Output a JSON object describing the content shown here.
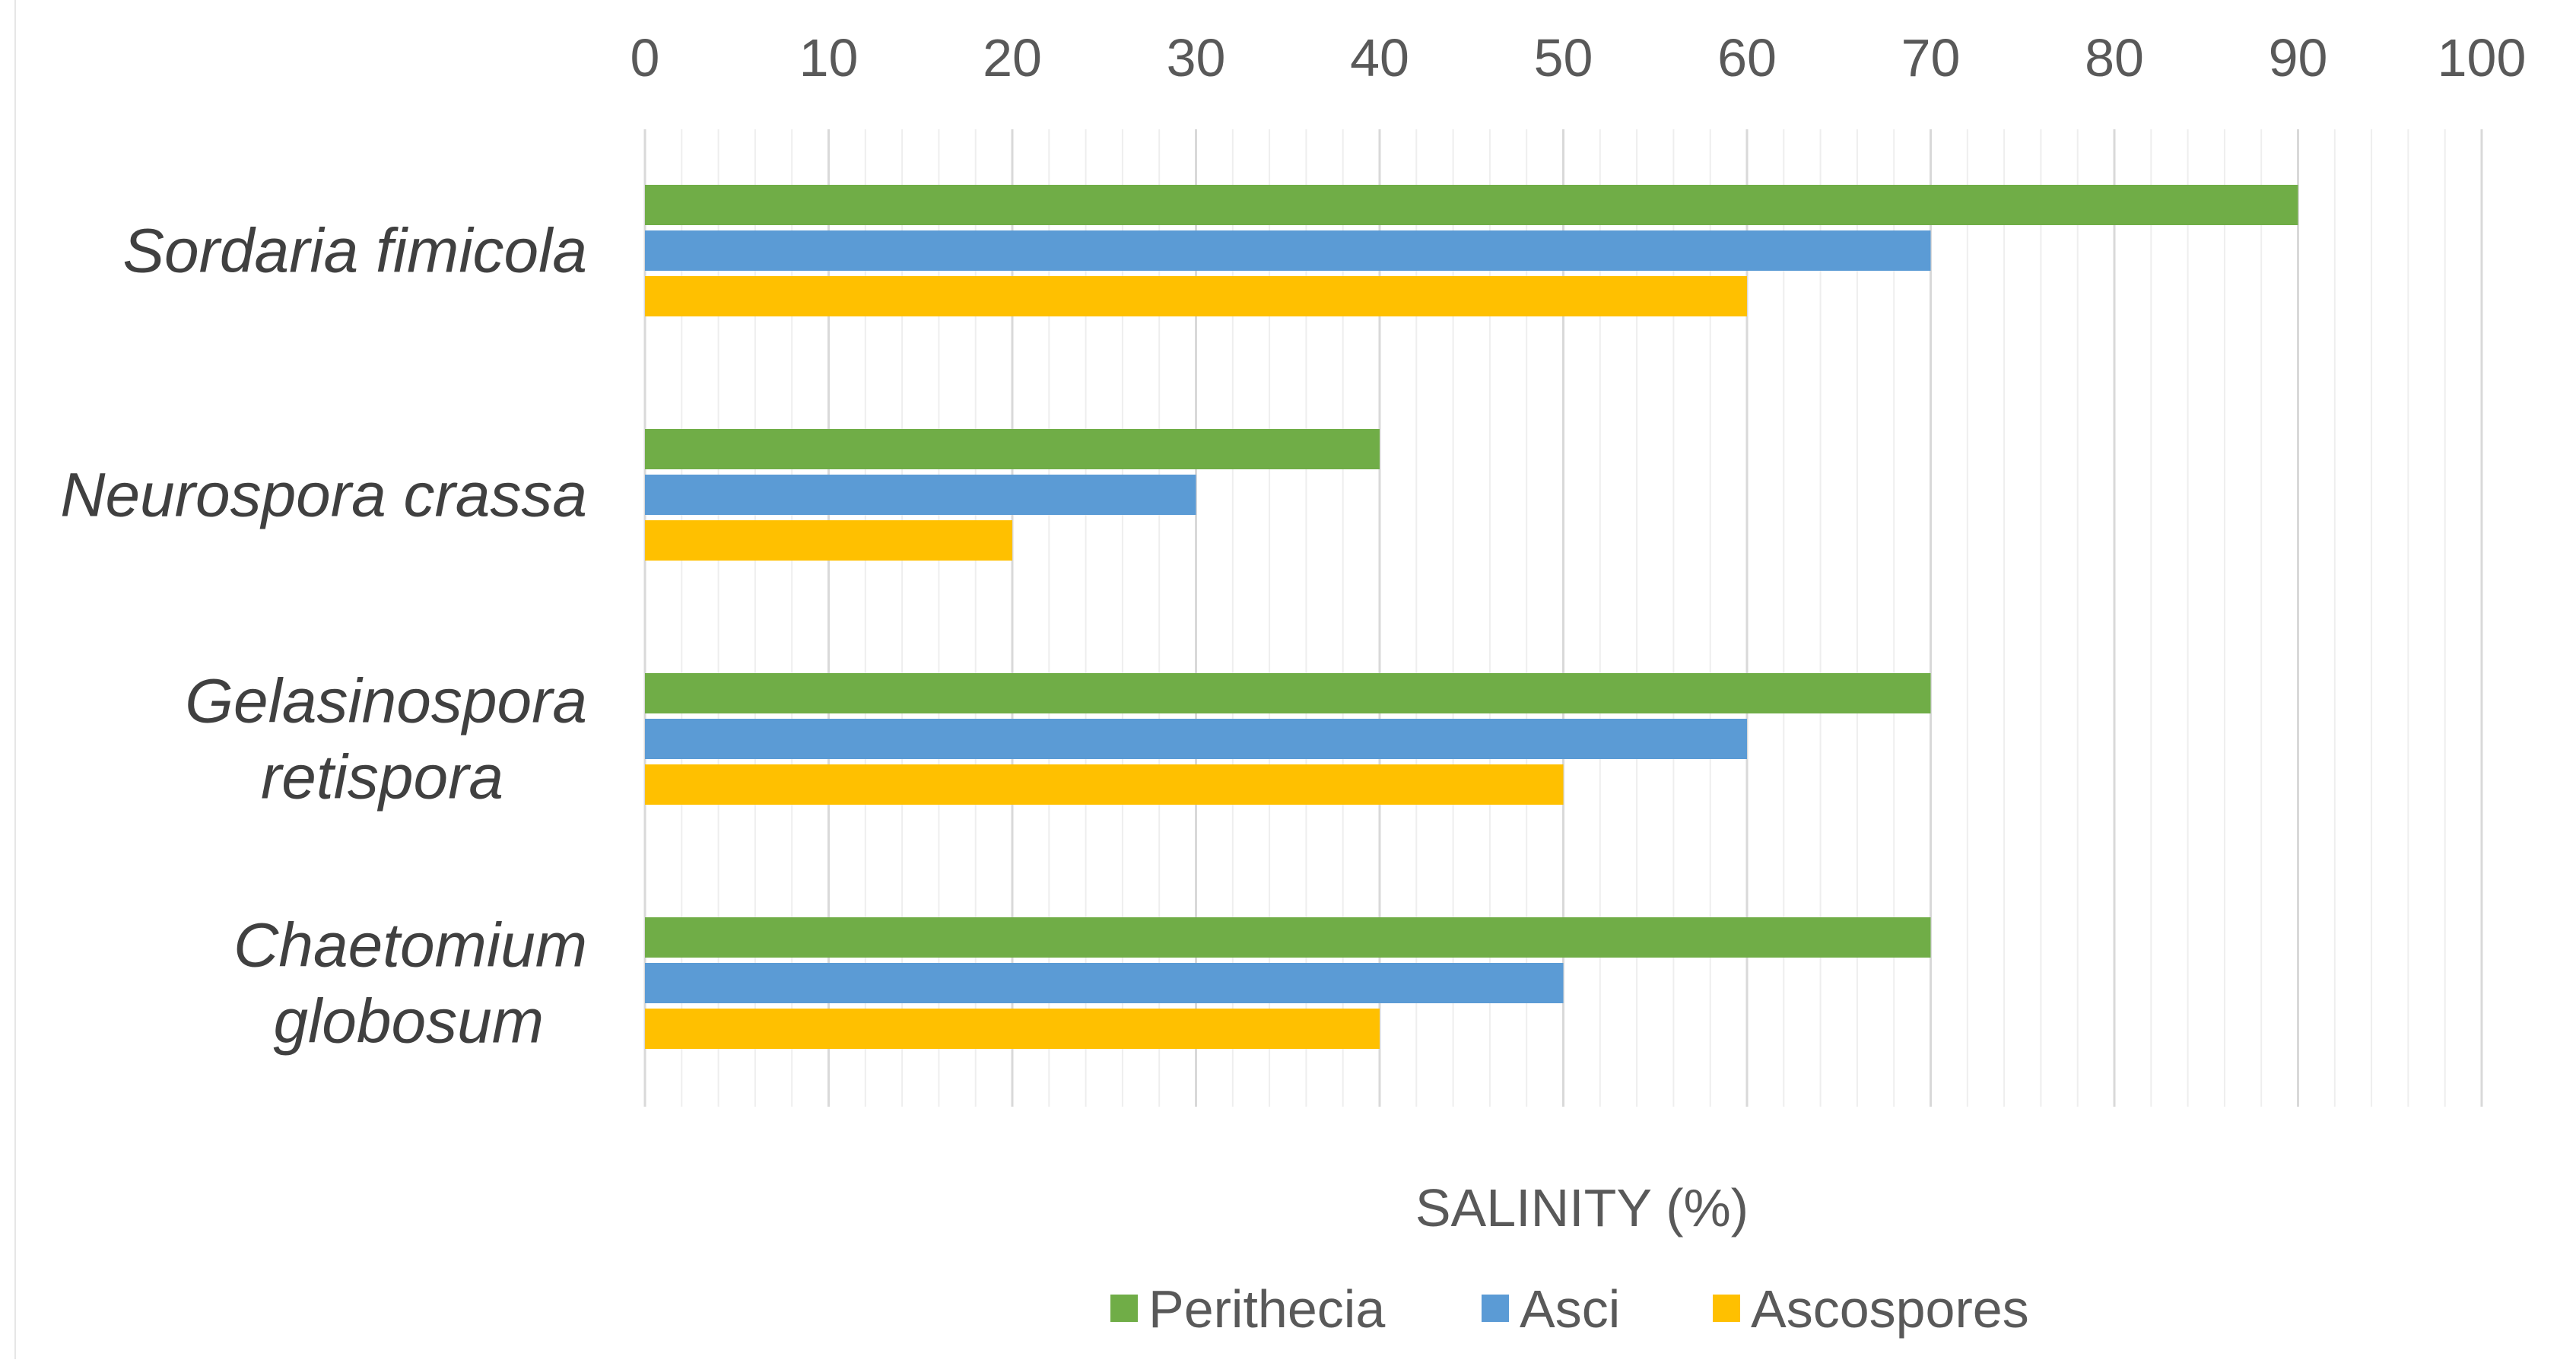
{
  "chart_data": {
    "type": "bar",
    "orientation": "horizontal",
    "title": "",
    "xlabel": "SALINITY (%)",
    "ylabel": "",
    "xlim": [
      0,
      100
    ],
    "x_ticks": [
      "0",
      "10",
      "20",
      "30",
      "40",
      "50",
      "60",
      "70",
      "80",
      "90",
      "100"
    ],
    "x_axis_position": "top",
    "grid": true,
    "legend_position": "bottom",
    "categories": [
      [
        "Sordaria fimicola"
      ],
      [
        "Neurospora crassa"
      ],
      [
        "Gelasinospora",
        "retispora"
      ],
      [
        "Chaetomium",
        "globosum"
      ]
    ],
    "series": [
      {
        "name": "Perithecia",
        "color": "#70ad47",
        "values": [
          90,
          40,
          70,
          70
        ]
      },
      {
        "name": "Asci",
        "color": "#5b9bd5",
        "values": [
          70,
          30,
          60,
          50
        ]
      },
      {
        "name": "Ascospores",
        "color": "#ffc000",
        "values": [
          60,
          20,
          50,
          40
        ]
      }
    ]
  }
}
